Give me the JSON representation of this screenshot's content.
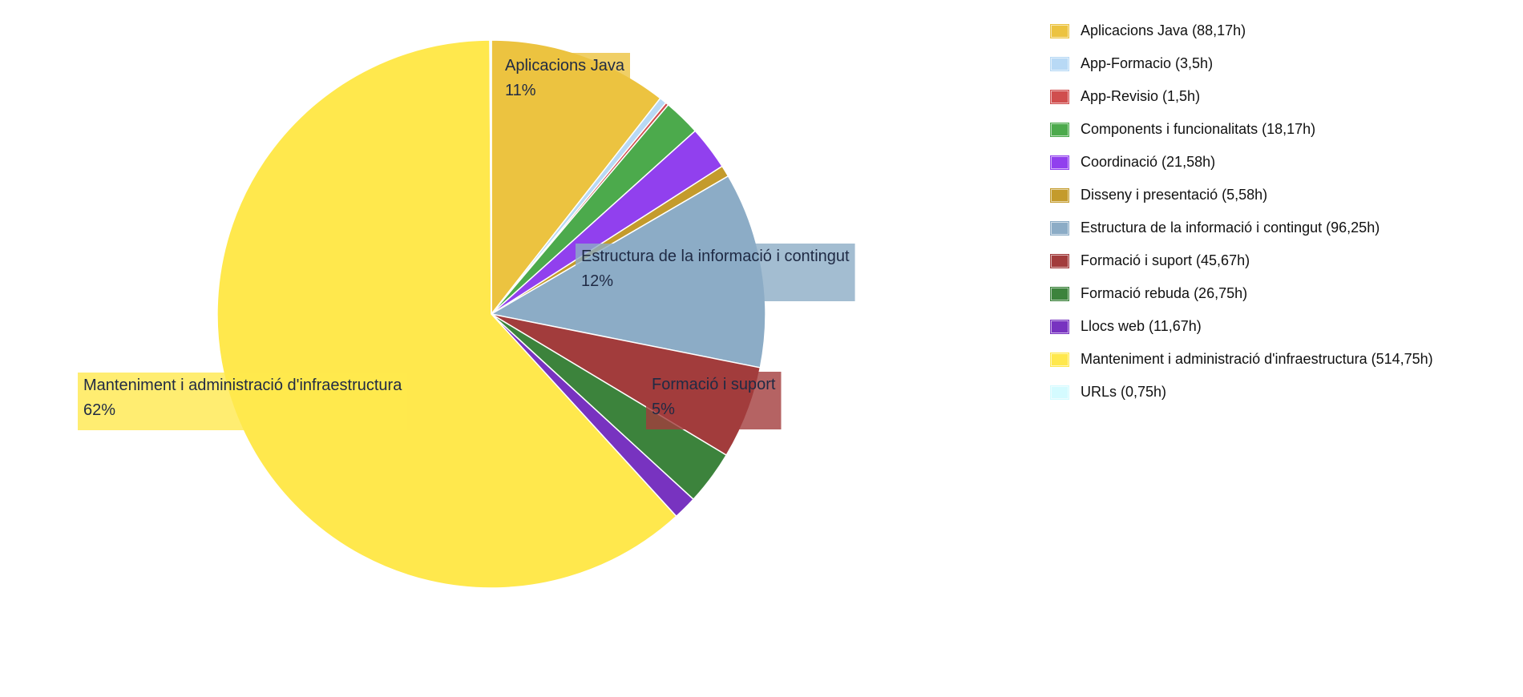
{
  "chart_data": {
    "type": "pie",
    "title": "",
    "start_angle_deg": 0,
    "direction": "clockwise",
    "legend_position": "right",
    "slices": [
      {
        "label": "Aplicacions Java",
        "legend": "Aplicacions Java (88,17h)",
        "value": 88.17,
        "color": "#ecc340",
        "pct_label": "11%",
        "show_label": true
      },
      {
        "label": "App-Formacio",
        "legend": "App-Formacio (3,5h)",
        "value": 3.5,
        "color": "#b8d9f5",
        "show_label": false
      },
      {
        "label": "App-Revisio",
        "legend": "App-Revisio (1,5h)",
        "value": 1.5,
        "color": "#d04e4e",
        "show_label": false
      },
      {
        "label": "Components i funcionalitats",
        "legend": "Components i funcionalitats (18,17h)",
        "value": 18.17,
        "color": "#4caa4c",
        "show_label": false
      },
      {
        "label": "Coordinació",
        "legend": "Coordinació (21,58h)",
        "value": 21.58,
        "color": "#9140ee",
        "show_label": false
      },
      {
        "label": "Disseny i presentació",
        "legend": "Disseny i presentació (5,58h)",
        "value": 5.58,
        "color": "#c49b2c",
        "show_label": false
      },
      {
        "label": "Estructura de la informació i contingut",
        "legend": "Estructura de la informació i contingut (96,25h)",
        "value": 96.25,
        "color": "#8cacc6",
        "pct_label": "12%",
        "show_label": true
      },
      {
        "label": "Formació i suport",
        "legend": "Formació i suport (45,67h)",
        "value": 45.67,
        "color": "#a23c3c",
        "pct_label": "5%",
        "show_label": true
      },
      {
        "label": "Formació rebuda",
        "legend": "Formació rebuda (26,75h)",
        "value": 26.75,
        "color": "#3c833c",
        "show_label": false
      },
      {
        "label": "Llocs web",
        "legend": "Llocs web (11,67h)",
        "value": 11.67,
        "color": "#7833c0",
        "show_label": false
      },
      {
        "label": "Manteniment i administració d'infraestructura",
        "legend": "Manteniment i administració d'infraestructura (514,75h)",
        "value": 514.75,
        "color": "#ffe84d",
        "pct_label": "62%",
        "show_label": true
      },
      {
        "label": "URLs",
        "legend": "URLs (0,75h)",
        "value": 0.75,
        "color": "#d4fbff",
        "show_label": false
      }
    ]
  }
}
